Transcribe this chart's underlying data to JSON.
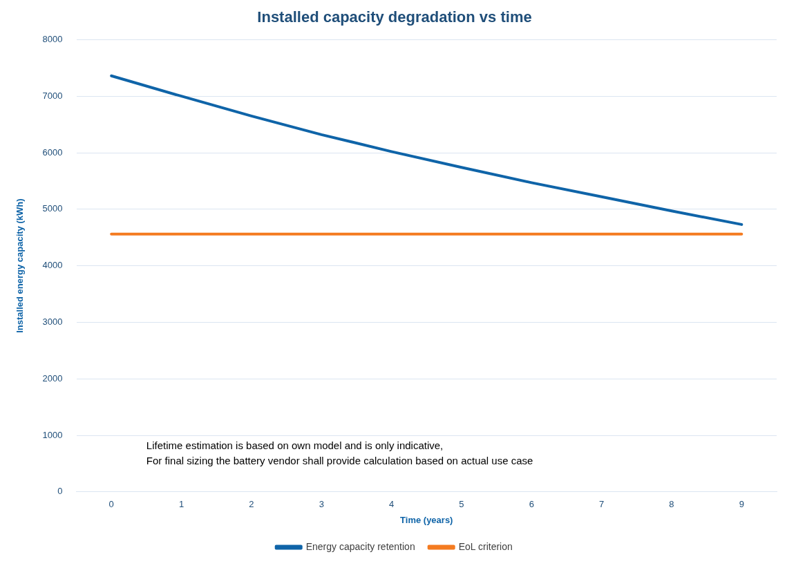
{
  "chart_data": {
    "type": "line",
    "title": "Installed capacity degradation vs time",
    "xlabel": "Time (years)",
    "ylabel": "Installed energy capacity (kWh)",
    "categories": [
      "0",
      "1",
      "2",
      "3",
      "4",
      "5",
      "6",
      "7",
      "8",
      "9"
    ],
    "series": [
      {
        "name": "Energy capacity retention",
        "color": "#0f64a8",
        "values": [
          7360,
          7000,
          6650,
          6320,
          6020,
          5740,
          5470,
          5220,
          4970,
          4730
        ]
      },
      {
        "name": "EoL criterion",
        "color": "#f47b20",
        "values": [
          4560,
          4560,
          4560,
          4560,
          4560,
          4560,
          4560,
          4560,
          4560,
          4560
        ]
      }
    ],
    "ylim": [
      0,
      8000
    ],
    "yticks": [
      0,
      1000,
      2000,
      3000,
      4000,
      5000,
      6000,
      7000,
      8000
    ],
    "grid": "y",
    "legend": "bottom",
    "marker": "none",
    "line_style": "solid",
    "annotations": [
      "Lifetime estimation is based on own model and is only indicative,",
      "For final sizing the battery vendor shall provide calculation based on actual use case"
    ]
  }
}
